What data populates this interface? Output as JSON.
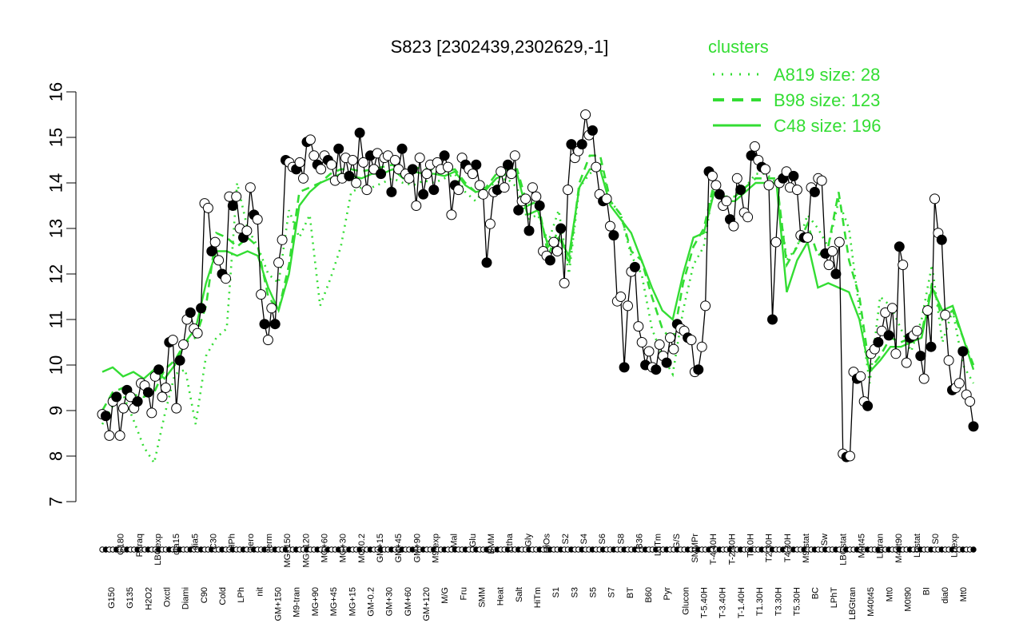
{
  "chart_data": {
    "type": "line",
    "title": "S823 [2302439,2302629,-1]",
    "xlabel": "",
    "ylabel": "",
    "ylim": [
      7,
      16
    ],
    "yticks": [
      7,
      8,
      9,
      10,
      11,
      12,
      13,
      14,
      15,
      16
    ],
    "legend": {
      "title": "clusters",
      "placement": "top-right",
      "entries": [
        {
          "label": "A819 size: 28",
          "style": "dotted"
        },
        {
          "label": "B98 size: 123",
          "style": "dashed"
        },
        {
          "label": "C48 size: 196",
          "style": "solid"
        }
      ]
    },
    "colors": {
      "series": "#000000",
      "cluster": "#33dd33",
      "filled_point": "#000000",
      "open_point": "#ffffff"
    },
    "x_tick_labels": [
      "G150",
      "G180",
      "G135",
      "Paraq",
      "H2O2",
      "LBGexp",
      "Oxctl",
      "dia15",
      "Diami",
      "dia5",
      "C90",
      "C30",
      "Cold",
      "HPh",
      "LPh",
      "aero",
      "nit",
      "ferm",
      "GM+150",
      "MG+150",
      "M9-tran",
      "MG+120",
      "MG+90",
      "MG+60",
      "MG+45",
      "MG+30",
      "MG+15",
      "MG-0.2",
      "GM-0.2",
      "GM+15",
      "GM+30",
      "GM+45",
      "GM+60",
      "GM+90",
      "GM+120",
      "M9-exp",
      "M/G",
      "Mal",
      "Fru",
      "Glu",
      "SMM",
      "BMM",
      "Heat",
      "Etha",
      "Salt",
      "Gly",
      "HiTm",
      "HiOs",
      "S1",
      "S2",
      "S3",
      "S4",
      "S5",
      "S6",
      "S7",
      "S8",
      "BT",
      "B36",
      "B60",
      "LoTm",
      "Pyr",
      "G/S",
      "Glucon",
      "SMMPr",
      "T-5.40H",
      "T-4.40H",
      "T-3.40H",
      "T-2.40H",
      "T-1.40H",
      "T0.0H",
      "T1.30H",
      "T2.30H",
      "T3.30H",
      "T4.30H",
      "T5.30H",
      "M9-stat",
      "BC",
      "Sw",
      "LPhT",
      "LBGstat",
      "LBGtran",
      "M0t45",
      "M40t45",
      "Lbtran",
      "Mt0",
      "M40t90",
      "M0t90",
      "Lbstat",
      "BI",
      "S0",
      "dia0",
      "Lbexp",
      "Mt0"
    ],
    "series": [
      {
        "values": [
          8.92,
          8.88,
          8.45,
          9.2,
          9.3,
          8.45,
          9.05,
          9.45,
          9.3,
          9.05,
          9.2,
          9.6,
          9.55,
          9.4,
          8.95,
          9.75,
          9.9,
          9.3,
          9.5,
          10.5,
          10.55,
          9.05,
          10.1,
          10.45,
          11.0,
          11.15,
          10.8,
          10.7,
          11.25,
          13.55,
          13.45,
          12.5,
          12.7,
          12.3,
          12.0,
          11.9,
          13.7,
          13.5,
          13.7,
          13.0,
          12.8,
          12.95,
          13.9,
          13.3,
          13.2,
          11.55,
          10.9,
          10.55,
          11.25,
          10.9,
          12.25,
          12.75,
          14.5,
          14.45,
          14.35,
          14.3,
          14.45,
          14.1,
          14.9,
          14.95,
          14.6,
          14.4,
          14.3,
          14.6,
          14.5,
          14.4,
          14.05,
          14.75,
          14.1,
          14.55,
          14.15,
          14.5,
          14.0,
          15.1,
          14.45,
          13.85,
          14.6,
          14.3,
          14.65,
          14.2,
          14.55,
          14.6,
          13.8,
          14.5,
          14.3,
          14.75,
          14.2,
          14.1,
          14.3,
          13.5,
          14.55,
          13.75,
          14.2,
          14.4,
          13.85,
          14.45,
          14.3,
          14.6,
          14.35,
          13.3,
          13.95,
          13.85,
          14.55,
          14.4,
          14.3,
          14.2,
          14.4,
          13.95,
          13.75,
          12.25,
          13.1,
          13.8,
          13.85,
          14.25,
          13.9,
          14.4,
          14.2,
          14.6,
          13.4,
          13.6,
          13.65,
          12.95,
          13.9,
          13.7,
          13.5,
          12.5,
          12.4,
          12.3,
          12.7,
          12.5,
          13.0,
          11.8,
          13.85,
          14.85,
          14.55,
          14.7,
          14.85,
          15.5,
          15.05,
          15.15,
          14.35,
          13.75,
          13.6,
          13.65,
          13.05,
          12.85,
          11.4,
          11.5,
          9.95,
          11.3,
          12.05,
          12.15,
          10.85,
          10.5,
          10.0,
          10.3,
          9.95,
          9.9,
          10.45,
          10.2,
          10.05,
          10.6,
          10.35,
          10.9,
          10.8,
          10.75,
          10.6,
          10.55,
          9.85,
          9.9,
          10.4,
          11.3,
          14.25,
          14.15,
          13.95,
          13.75,
          13.5,
          13.6,
          13.2,
          13.05,
          14.1,
          13.85,
          13.35,
          13.25,
          14.6,
          14.8,
          14.5,
          14.35,
          14.3,
          13.95,
          11.0,
          12.7,
          14.0,
          14.1,
          14.25,
          13.9,
          14.15,
          13.85,
          12.85,
          12.8,
          12.8,
          13.9,
          13.8,
          14.1,
          14.05,
          12.45,
          12.2,
          12.5,
          12.0,
          12.7,
          8.05,
          7.98,
          8.0,
          9.85,
          9.7,
          9.75,
          9.2,
          9.1,
          10.25,
          10.35,
          10.5,
          10.75,
          11.15,
          10.65,
          11.25,
          10.25,
          12.6,
          12.2,
          10.05,
          10.6,
          10.65,
          10.75,
          10.2,
          9.7,
          11.2,
          10.4,
          13.65,
          12.9,
          12.75,
          11.1,
          10.1,
          9.45,
          9.5,
          9.6,
          10.3,
          9.35,
          9.2,
          8.65
        ]
      }
    ],
    "clusters": [
      {
        "name": "A819 size: 28",
        "style": "dotted",
        "values": [
          8.7,
          9.1,
          9.35,
          8.8,
          8.2,
          7.85,
          8.9,
          9.8,
          9.9,
          8.7,
          10.2,
          10.6,
          10.8,
          14.0,
          13.0,
          12.6,
          12.0,
          11.8,
          13.4,
          12.8,
          13.3,
          11.3,
          11.9,
          12.6,
          13.8,
          13.9,
          13.9,
          14.0,
          14.1,
          14.0,
          13.95,
          14.05,
          14.0,
          14.1,
          14.2,
          13.8,
          13.6,
          13.9,
          14.0,
          14.1,
          13.9,
          13.2,
          13.3,
          12.7,
          13.4,
          12.0,
          13.9,
          14.2,
          14.4,
          13.6,
          13.3,
          12.4,
          12.0,
          10.8,
          10.2,
          9.8,
          11.2,
          12.2,
          12.6,
          14.0,
          13.5,
          13.7,
          13.9,
          14.2,
          14.2,
          14.0,
          12.3,
          12.6,
          13.3,
          13.0,
          12.6,
          13.6,
          13.0,
          11.2,
          9.6,
          11.5,
          11.3,
          10.8,
          10.3,
          11.0,
          12.2,
          10.5,
          11.2,
          10.0,
          9.6
        ]
      },
      {
        "name": "B98 size: 123",
        "style": "dashed",
        "values": [
          9.0,
          9.4,
          9.5,
          9.35,
          9.3,
          9.4,
          9.9,
          10.1,
          10.5,
          10.6,
          11.3,
          12.9,
          12.8,
          12.6,
          12.8,
          12.6,
          11.5,
          11.2,
          12.2,
          13.8,
          13.9,
          14.0,
          14.2,
          14.3,
          14.3,
          14.25,
          14.3,
          14.35,
          14.4,
          14.2,
          14.35,
          14.3,
          14.3,
          14.25,
          14.3,
          14.0,
          13.8,
          13.9,
          14.2,
          14.3,
          14.3,
          13.5,
          13.6,
          12.4,
          13.0,
          12.2,
          14.0,
          14.6,
          14.6,
          13.6,
          13.3,
          12.5,
          12.3,
          11.5,
          10.8,
          10.5,
          11.8,
          12.6,
          13.0,
          14.0,
          13.7,
          13.7,
          13.9,
          14.1,
          14.1,
          14.1,
          12.2,
          12.6,
          13.1,
          12.4,
          12.6,
          13.8,
          12.3,
          11.5,
          9.9,
          10.2,
          10.6,
          10.5,
          10.6,
          10.7,
          11.8,
          11.0,
          11.2,
          10.6,
          10.0
        ]
      },
      {
        "name": "C48 size: 196",
        "style": "solid",
        "values": [
          9.85,
          9.95,
          9.75,
          9.85,
          9.7,
          9.9,
          9.7,
          10.0,
          10.5,
          10.8,
          11.8,
          12.5,
          12.5,
          12.4,
          12.5,
          12.4,
          11.7,
          11.2,
          12.0,
          13.5,
          13.8,
          14.0,
          14.1,
          14.2,
          14.15,
          14.1,
          14.2,
          14.2,
          14.3,
          14.1,
          14.25,
          14.2,
          14.2,
          14.15,
          14.25,
          13.95,
          13.8,
          13.85,
          14.1,
          14.2,
          14.2,
          13.3,
          13.4,
          12.6,
          12.8,
          12.4,
          13.9,
          14.3,
          14.3,
          13.5,
          13.2,
          12.9,
          12.3,
          11.7,
          11.2,
          11.0,
          12.0,
          12.8,
          12.9,
          13.8,
          13.6,
          13.6,
          13.8,
          14.0,
          14.0,
          14.0,
          11.6,
          12.3,
          12.7,
          11.7,
          11.8,
          11.7,
          11.6,
          11.0,
          9.85,
          10.1,
          10.4,
          10.4,
          10.5,
          10.6,
          11.7,
          11.2,
          11.3,
          10.6,
          9.9
        ]
      }
    ]
  }
}
